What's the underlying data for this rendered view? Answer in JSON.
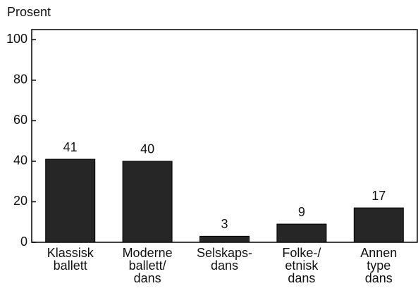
{
  "chart_data": {
    "type": "bar",
    "y_label": "Prosent",
    "categories": [
      [
        "Klassisk",
        "ballett"
      ],
      [
        "Moderne",
        "ballett/",
        "dans"
      ],
      [
        "Selskaps-",
        "dans"
      ],
      [
        "Folke-/",
        "etnisk",
        "dans"
      ],
      [
        "Annen",
        "type",
        "dans"
      ]
    ],
    "values": [
      41,
      40,
      3,
      9,
      17
    ],
    "color": "#262626",
    "ylim": [
      0,
      105
    ],
    "yticks": [
      0,
      20,
      40,
      60,
      80,
      100
    ]
  }
}
